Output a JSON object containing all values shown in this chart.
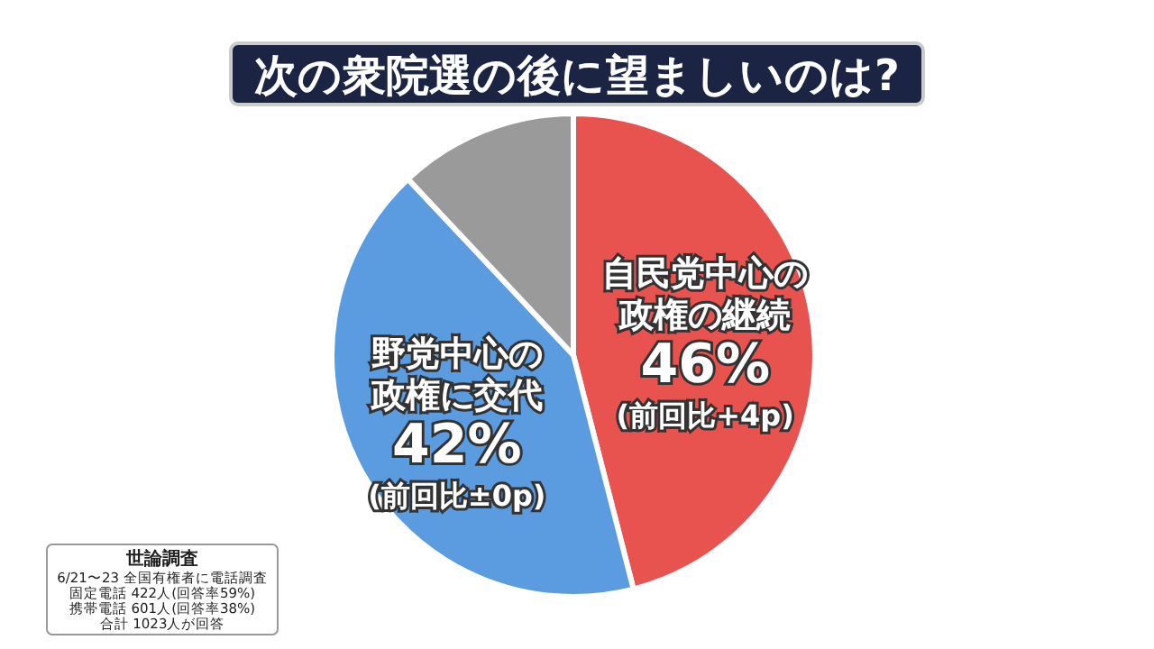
{
  "chart_data": {
    "type": "pie",
    "title": "次の衆院選の後に望ましいのは?",
    "categories": [
      "自民党中心の政権の継続",
      "野党中心の政権に交代",
      null
    ],
    "values": [
      46,
      42,
      12
    ],
    "colors": [
      "#e8524f",
      "#5b9be0",
      "#9a9a9a"
    ],
    "value_labels": [
      "46%",
      "42%",
      null
    ],
    "annotations": [
      "(前回比+4p)",
      "(前回比±0p)",
      "世論調査",
      "6/21〜23 全国有権者に電話調査",
      "固定電話 422人(回答率59%)",
      "携帯電話 601人(回答率38%)",
      "合計 1023人が回答"
    ]
  }
}
